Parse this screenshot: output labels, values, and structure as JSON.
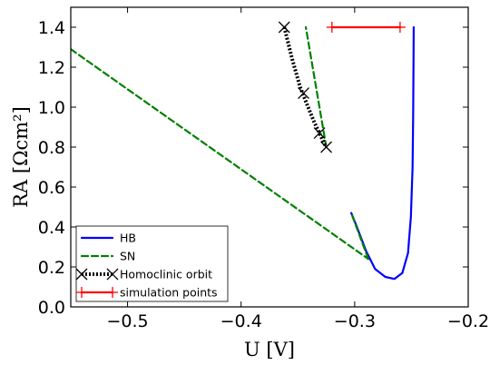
{
  "chart_data": {
    "type": "line",
    "xlabel": "U [V]",
    "ylabel": "RA [Ωcm²]",
    "xlim": [
      -0.55,
      -0.2
    ],
    "ylim": [
      0.0,
      1.5
    ],
    "x_ticks": [
      -0.5,
      -0.4,
      -0.3,
      -0.2
    ],
    "x_tick_labels": [
      "−0.5",
      "−0.4",
      "−0.3",
      "−0.2"
    ],
    "y_ticks": [
      0.0,
      0.2,
      0.4,
      0.6,
      0.8,
      1.0,
      1.2,
      1.4
    ],
    "y_tick_labels": [
      "0.0",
      "0.2",
      "0.4",
      "0.6",
      "0.8",
      "1.0",
      "1.2",
      "1.4"
    ],
    "grid": false,
    "legend_position": "lower-left",
    "series": [
      {
        "name": "HB",
        "style": "solid",
        "color": "#0000ff",
        "x": [
          -0.303,
          -0.298,
          -0.29,
          -0.282,
          -0.273,
          -0.265,
          -0.258,
          -0.253,
          -0.2505,
          -0.249,
          -0.2485,
          -0.2482,
          -0.248
        ],
        "y": [
          0.47,
          0.4,
          0.28,
          0.19,
          0.15,
          0.14,
          0.17,
          0.27,
          0.45,
          0.7,
          0.95,
          1.2,
          1.4
        ]
      },
      {
        "name": "SN",
        "style": "dashed",
        "color": "#008000",
        "segments": [
          {
            "x": [
              -0.55,
              -0.288
            ],
            "y": [
              1.29,
              0.24
            ]
          },
          {
            "x": [
              -0.288,
              -0.303
            ],
            "y": [
              0.24,
              0.47
            ]
          },
          {
            "x": [
              -0.325,
              -0.343
            ],
            "y": [
              0.8,
              1.4
            ]
          }
        ]
      },
      {
        "name": "Homoclinic orbit",
        "style": "dotted",
        "color": "#000000",
        "marker": "x",
        "x": [
          -0.362,
          -0.355,
          -0.348,
          -0.341,
          -0.336,
          -0.331,
          -0.327,
          -0.325
        ],
        "y": [
          1.4,
          1.24,
          1.1,
          1.0,
          0.93,
          0.87,
          0.82,
          0.8
        ],
        "marker_points": [
          [
            -0.362,
            1.4
          ],
          [
            -0.345,
            1.07
          ],
          [
            -0.331,
            0.87
          ],
          [
            -0.325,
            0.8
          ]
        ]
      },
      {
        "name": "simulation points",
        "style": "solid",
        "color": "#ff0000",
        "marker": "+",
        "x": [
          -0.32,
          -0.26
        ],
        "y": [
          1.4,
          1.4
        ]
      }
    ]
  }
}
